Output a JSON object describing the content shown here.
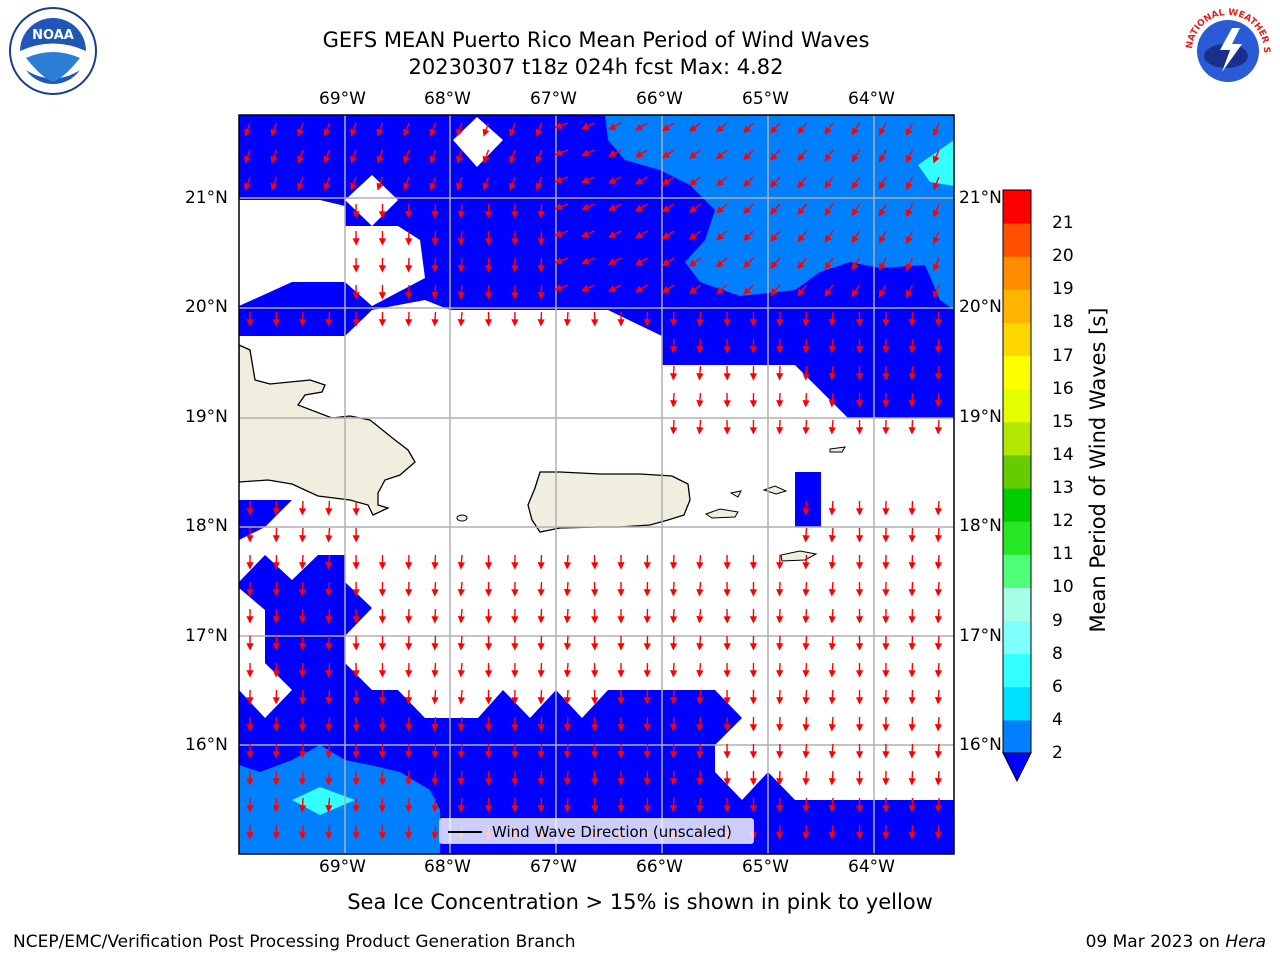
{
  "title_line1": "GEFS MEAN Puerto Rico Mean Period of Wind Waves",
  "title_line2": "20230307 t18z 024h fcst   Max: 4.82",
  "lon_ticks": [
    "69°W",
    "68°W",
    "67°W",
    "66°W",
    "65°W",
    "64°W"
  ],
  "lat_ticks": [
    "21°N",
    "20°N",
    "19°N",
    "18°N",
    "17°N",
    "16°N"
  ],
  "colorbar": {
    "label": "Mean Period of Wind Waves [s]",
    "tick_labels": [
      "2",
      "4",
      "6",
      "8",
      "9",
      "10",
      "11",
      "12",
      "13",
      "14",
      "15",
      "16",
      "17",
      "18",
      "19",
      "20",
      "21"
    ],
    "colors": [
      "#0000ff",
      "#0080ff",
      "#00e0ff",
      "#33ffff",
      "#80ffff",
      "#a8ffe8",
      "#50ff78",
      "#26e626",
      "#00cc00",
      "#66cc00",
      "#b3e600",
      "#e6ff00",
      "#ffff00",
      "#ffd700",
      "#ffb400",
      "#ff8c00",
      "#ff5000",
      "#ff0000"
    ]
  },
  "legend": {
    "text": "Wind Wave Direction (unscaled)"
  },
  "caption": "Sea Ice Concentration > 15% is shown in pink to yellow",
  "footer": {
    "left": "NCEP/EMC/Verification Post Processing Product Generation Branch",
    "date": "09 Mar 2023 on",
    "host": "Hera"
  },
  "logos": {
    "noaa": "NOAA",
    "nws": "NATIONAL WEATHER SERVICE"
  }
}
